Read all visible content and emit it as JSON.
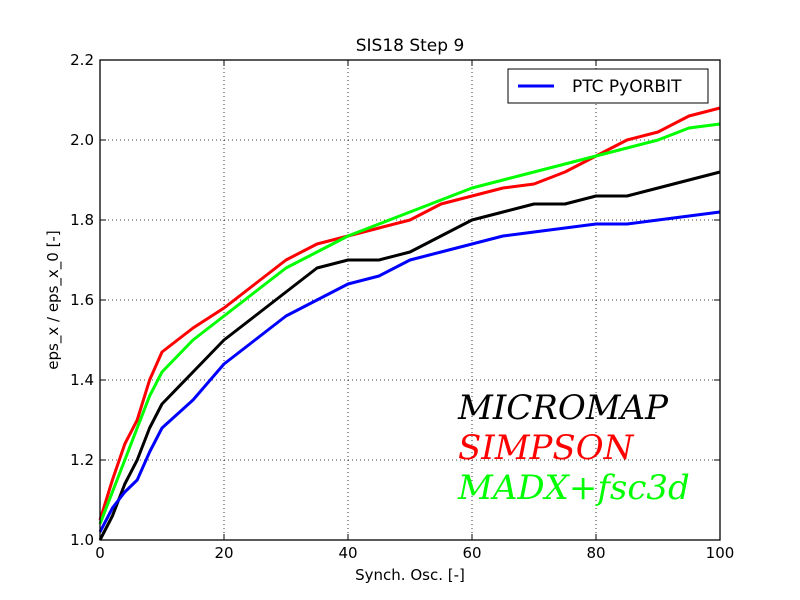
{
  "chart_data": {
    "type": "line",
    "title": "SIS18 Step 9",
    "xlabel": "Synch. Osc. [-]",
    "ylabel": "eps_x / eps_x_0 [-]",
    "xlim": [
      0,
      100
    ],
    "ylim": [
      1.0,
      2.2
    ],
    "xticks": [
      "0",
      "20",
      "40",
      "60",
      "80",
      "100"
    ],
    "yticks": [
      "1.0",
      "1.2",
      "1.4",
      "1.6",
      "1.8",
      "2.0",
      "2.2"
    ],
    "grid": true,
    "legend": {
      "placement": "top-right",
      "entries": [
        "PTC PyORBIT"
      ]
    },
    "annotations": [
      {
        "text": "MICROMAP",
        "color": "#000000"
      },
      {
        "text": "SIMPSON",
        "color": "#ff0000"
      },
      {
        "text": "MADX+fsc3d",
        "color": "#00ff00"
      }
    ],
    "series": [
      {
        "name": "PTC PyORBIT",
        "color": "#0000ff",
        "x": [
          0,
          2,
          4,
          6,
          8,
          10,
          15,
          20,
          25,
          30,
          35,
          40,
          45,
          50,
          55,
          60,
          65,
          70,
          75,
          80,
          85,
          90,
          95,
          100
        ],
        "y": [
          1.02,
          1.08,
          1.12,
          1.15,
          1.22,
          1.28,
          1.35,
          1.44,
          1.5,
          1.56,
          1.6,
          1.64,
          1.66,
          1.7,
          1.72,
          1.74,
          1.76,
          1.77,
          1.78,
          1.79,
          1.79,
          1.8,
          1.81,
          1.82
        ]
      },
      {
        "name": "",
        "color": "#000000",
        "x": [
          0,
          2,
          4,
          6,
          8,
          10,
          15,
          20,
          25,
          30,
          35,
          40,
          45,
          50,
          55,
          60,
          65,
          70,
          75,
          80,
          85,
          90,
          95,
          100
        ],
        "y": [
          1.0,
          1.06,
          1.14,
          1.2,
          1.28,
          1.34,
          1.42,
          1.5,
          1.56,
          1.62,
          1.68,
          1.7,
          1.7,
          1.72,
          1.76,
          1.8,
          1.82,
          1.84,
          1.84,
          1.86,
          1.86,
          1.88,
          1.9,
          1.92
        ]
      },
      {
        "name": "",
        "color": "#ff0000",
        "x": [
          0,
          2,
          4,
          6,
          8,
          10,
          15,
          20,
          25,
          30,
          35,
          40,
          45,
          50,
          55,
          60,
          65,
          70,
          75,
          80,
          85,
          90,
          95,
          100
        ],
        "y": [
          1.05,
          1.15,
          1.24,
          1.3,
          1.4,
          1.47,
          1.53,
          1.58,
          1.64,
          1.7,
          1.74,
          1.76,
          1.78,
          1.8,
          1.84,
          1.86,
          1.88,
          1.89,
          1.92,
          1.96,
          2.0,
          2.02,
          2.06,
          2.08
        ]
      },
      {
        "name": "",
        "color": "#00ff00",
        "x": [
          0,
          2,
          4,
          6,
          8,
          10,
          15,
          20,
          25,
          30,
          35,
          40,
          45,
          50,
          55,
          60,
          65,
          70,
          75,
          80,
          85,
          90,
          95,
          100
        ],
        "y": [
          1.04,
          1.12,
          1.2,
          1.28,
          1.36,
          1.42,
          1.5,
          1.56,
          1.62,
          1.68,
          1.72,
          1.76,
          1.79,
          1.82,
          1.85,
          1.88,
          1.9,
          1.92,
          1.94,
          1.96,
          1.98,
          2.0,
          2.03,
          2.04
        ]
      }
    ]
  }
}
